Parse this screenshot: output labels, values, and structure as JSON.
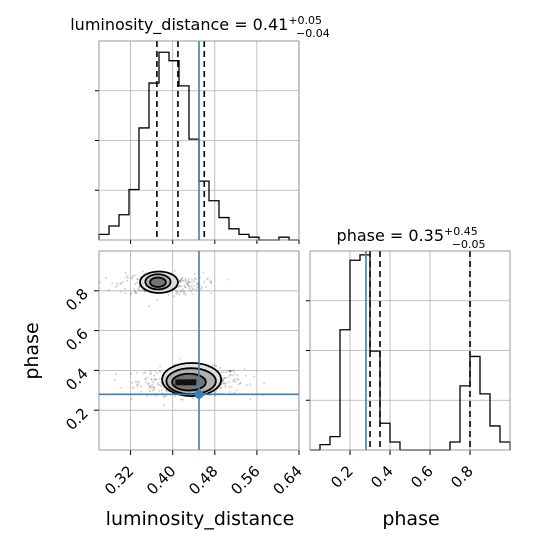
{
  "chart_data": {
    "type": "corner",
    "parameters": [
      "luminosity_distance",
      "phase"
    ],
    "truth": {
      "luminosity_distance": 0.45,
      "phase": 0.28,
      "color": "#3b7fb3"
    },
    "titles": {
      "luminosity_distance": {
        "main": "luminosity_distance = 0.41",
        "sup": "+0.05",
        "sub": "−0.04"
      },
      "phase": {
        "main": "phase = 0.35",
        "sup": "+0.45",
        "sub": "−0.05"
      }
    },
    "axis_labels": {
      "x_left": "luminosity_distance",
      "x_right": "phase",
      "y_lower": "phase"
    },
    "ticks": {
      "luminosity_distance": [
        "0.32",
        "0.40",
        "0.48",
        "0.56",
        "0.64"
      ],
      "phase": [
        "0.2",
        "0.4",
        "0.6",
        "0.8"
      ]
    },
    "ranges": {
      "luminosity_distance": [
        0.26,
        0.64
      ],
      "phase": [
        0.0,
        1.0
      ]
    },
    "quantiles": {
      "luminosity_distance": [
        0.37,
        0.41,
        0.46
      ],
      "phase": [
        0.3,
        0.35,
        0.8
      ]
    },
    "hist_luminosity_distance": {
      "edges_start": 0.26,
      "bin_width": 0.019,
      "counts": [
        2,
        5,
        9,
        18,
        40,
        56,
        67,
        64,
        55,
        36,
        21,
        14,
        8,
        4,
        2,
        1,
        0,
        0,
        1,
        0
      ]
    },
    "hist_phase": {
      "edges_start": 0.0,
      "bin_width": 0.05,
      "counts": [
        0,
        2,
        5,
        45,
        71,
        73,
        37,
        10,
        3,
        0,
        0,
        0,
        0,
        0,
        3,
        24,
        35,
        21,
        9,
        3
      ]
    },
    "contours_2d": [
      {
        "level": "outer",
        "cx": [
          0.374,
          0.436
        ],
        "cy": [
          0.843,
          0.354
        ],
        "rx": [
          0.036,
          0.056
        ],
        "ry": [
          0.054,
          0.083
        ]
      },
      {
        "level": "middle",
        "cx": [
          0.372,
          0.435
        ],
        "cy": [
          0.845,
          0.346
        ],
        "rx": [
          0.024,
          0.047
        ],
        "ry": [
          0.038,
          0.065
        ]
      },
      {
        "level": "inner",
        "cx": [
          0.372,
          0.431
        ],
        "cy": [
          0.843,
          0.341
        ],
        "rx": [
          0.015,
          0.032
        ],
        "ry": [
          0.024,
          0.042
        ]
      }
    ],
    "grid": true
  }
}
